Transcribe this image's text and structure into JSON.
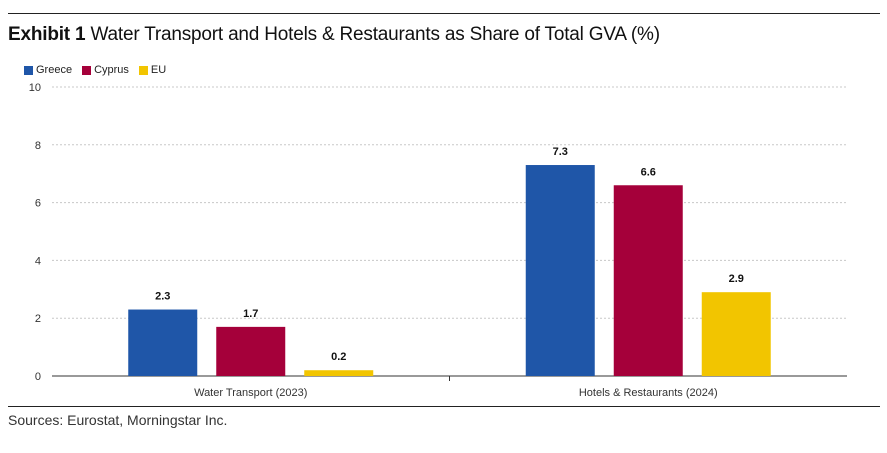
{
  "header": {
    "title_bold": "Exhibit 1",
    "title_rest": "Water Transport and Hotels & Restaurants as Share of Total GVA (%)"
  },
  "footer": {
    "source": "Sources: Eurostat, Morningstar Inc."
  },
  "chart_data": {
    "type": "bar",
    "title": "Exhibit 1 Water Transport and Hotels & Restaurants as Share of Total GVA (%)",
    "categories": [
      "Water Transport (2023)",
      "Hotels & Restaurants (2024)"
    ],
    "series": [
      {
        "name": "Greece",
        "values": [
          2.3,
          7.3
        ],
        "color": "#1f56a8"
      },
      {
        "name": "Cyprus",
        "values": [
          1.7,
          6.6
        ],
        "color": "#a5003a"
      },
      {
        "name": "EU",
        "values": [
          0.2,
          2.9
        ],
        "color": "#f2c500"
      }
    ],
    "ylim": [
      0,
      10
    ],
    "yticks": [
      0,
      2,
      4,
      6,
      8,
      10
    ],
    "xlabel": "",
    "ylabel": "",
    "grid": true,
    "legend": "top-left"
  }
}
